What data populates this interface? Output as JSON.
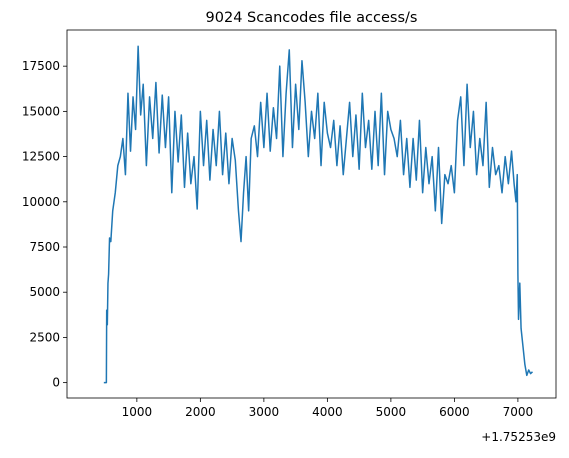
{
  "chart_data": {
    "type": "line",
    "title": "9024 Scancodes file access/s",
    "xlabel": "",
    "ylabel": "",
    "x_offset_text": "+1.75253e9",
    "xlim": [
      -100,
      7600
    ],
    "ylim": [
      -850,
      19500
    ],
    "x_ticks": [
      1000,
      2000,
      3000,
      4000,
      5000,
      6000,
      7000
    ],
    "y_ticks": [
      0,
      2500,
      5000,
      7500,
      10000,
      12500,
      15000,
      17500
    ],
    "grid": false,
    "legend": "none",
    "series": [
      {
        "color": "#1f77b4",
        "x": [
          480,
          520,
          525,
          535,
          545,
          555,
          570,
          590,
          620,
          660,
          700,
          740,
          780,
          820,
          860,
          900,
          940,
          980,
          1020,
          1060,
          1100,
          1150,
          1200,
          1250,
          1300,
          1350,
          1400,
          1450,
          1500,
          1550,
          1600,
          1650,
          1700,
          1750,
          1800,
          1850,
          1900,
          1950,
          2000,
          2050,
          2100,
          2150,
          2200,
          2250,
          2300,
          2350,
          2400,
          2450,
          2500,
          2550,
          2600,
          2640,
          2680,
          2720,
          2760,
          2800,
          2850,
          2900,
          2950,
          3000,
          3050,
          3100,
          3150,
          3200,
          3250,
          3300,
          3350,
          3400,
          3450,
          3500,
          3550,
          3600,
          3650,
          3700,
          3750,
          3800,
          3850,
          3900,
          3950,
          4000,
          4050,
          4100,
          4150,
          4200,
          4250,
          4300,
          4350,
          4400,
          4450,
          4500,
          4550,
          4600,
          4650,
          4700,
          4750,
          4800,
          4850,
          4900,
          4950,
          5000,
          5050,
          5100,
          5150,
          5200,
          5250,
          5300,
          5350,
          5400,
          5450,
          5500,
          5550,
          5600,
          5650,
          5700,
          5750,
          5800,
          5850,
          5900,
          5950,
          6000,
          6050,
          6100,
          6150,
          6200,
          6250,
          6300,
          6350,
          6400,
          6450,
          6500,
          6550,
          6600,
          6650,
          6700,
          6750,
          6800,
          6850,
          6900,
          6940,
          6970,
          6990,
          7000,
          7010,
          7030,
          7050,
          7080,
          7110,
          7140,
          7170,
          7200,
          7230
        ],
        "y": [
          0,
          0,
          4000,
          3200,
          5500,
          6000,
          8000,
          7800,
          9500,
          10500,
          12000,
          12500,
          13500,
          11500,
          16000,
          12800,
          15800,
          14000,
          18600,
          14800,
          16500,
          12000,
          15800,
          13500,
          16600,
          12700,
          15900,
          13000,
          15800,
          10500,
          15000,
          12200,
          14800,
          10800,
          13800,
          11000,
          12500,
          9600,
          15000,
          12000,
          14500,
          11200,
          14000,
          12000,
          15000,
          11500,
          13800,
          11000,
          13500,
          12300,
          9500,
          7800,
          10500,
          12500,
          9500,
          13500,
          14200,
          12500,
          15500,
          13000,
          16000,
          12800,
          15200,
          13500,
          17500,
          12500,
          16000,
          18400,
          13000,
          16500,
          14000,
          17800,
          15500,
          12500,
          15000,
          13500,
          16000,
          12000,
          15500,
          13800,
          13000,
          14500,
          12000,
          14200,
          11500,
          13500,
          15500,
          12500,
          14800,
          11800,
          16000,
          13000,
          14500,
          11800,
          15000,
          12000,
          16000,
          11500,
          15000,
          14000,
          13500,
          12500,
          14500,
          11500,
          13500,
          10800,
          13500,
          11200,
          14500,
          10500,
          13000,
          11000,
          12500,
          9500,
          13000,
          8800,
          11500,
          11000,
          12000,
          10500,
          14500,
          15800,
          12000,
          16500,
          13000,
          15000,
          11500,
          13500,
          12000,
          15500,
          10800,
          13000,
          11500,
          12000,
          10500,
          12500,
          11000,
          12800,
          11000,
          10000,
          11500,
          6000,
          3500,
          5500,
          3000,
          2000,
          1000,
          400,
          700,
          500,
          600
        ]
      }
    ]
  }
}
